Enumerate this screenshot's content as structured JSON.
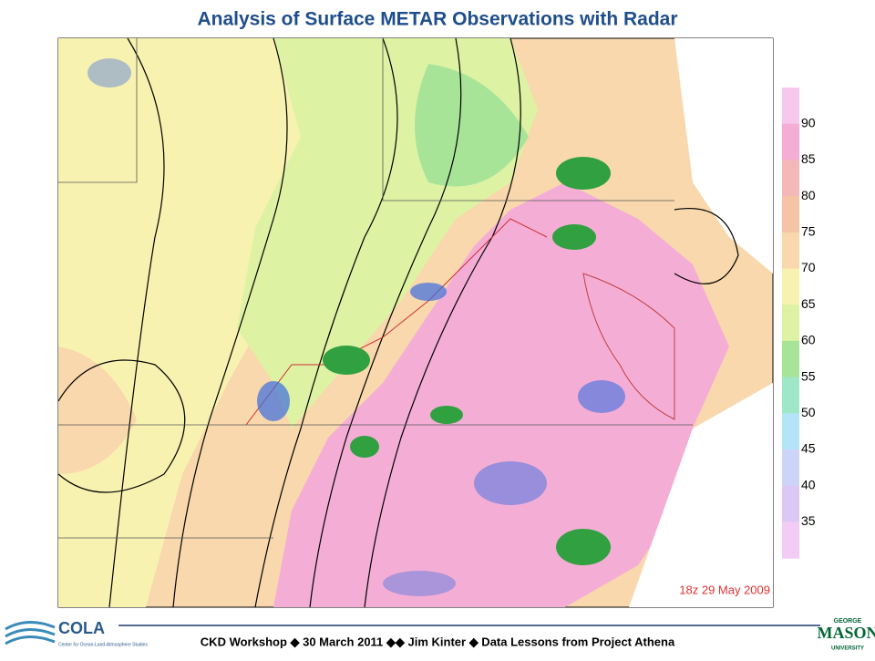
{
  "header": {
    "title": "Analysis of Surface METAR Observations with Radar"
  },
  "map": {
    "timestamp": "18z 29 May 2009"
  },
  "colorbar": {
    "labels": [
      90,
      85,
      80,
      75,
      70,
      65,
      60,
      55,
      50,
      45,
      40,
      35
    ],
    "colors": [
      "#f6c8ee",
      "#f4aed6",
      "#f4b8b8",
      "#f4c4a4",
      "#f8d8ac",
      "#f8f2b0",
      "#def2a4",
      "#a8e498",
      "#9ee8c8",
      "#b4e4f8",
      "#ccd4f8",
      "#dcc8f4",
      "#f2ccf4"
    ]
  },
  "footer": {
    "text": "CKD Workshop ◆ 30 March 2011 ◆◆ Jim Kinter ◆ Data Lessons from Project Athena",
    "left_logo": "COLA",
    "left_logo_sub": "Center for Ocean-Land-Atmosphere Studies",
    "right_logo_top": "GEORGE",
    "right_logo_main": "MASON",
    "right_logo_bottom": "UNIVERSITY"
  }
}
